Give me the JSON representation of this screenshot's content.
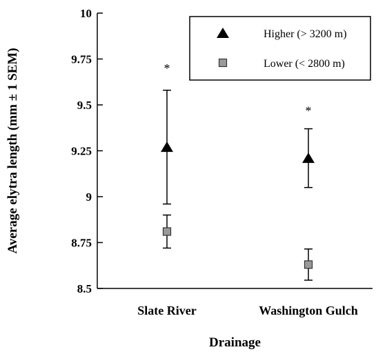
{
  "chart_data": {
    "type": "scatter",
    "title": "",
    "xlabel": "Drainage",
    "ylabel": "Average elytra length (mm ± 1 SEM)",
    "categories": [
      "Slate River",
      "Washington Gulch"
    ],
    "ylim": [
      8.5,
      10
    ],
    "yticks": [
      "8.5",
      "8.75",
      "9",
      "9.25",
      "9.5",
      "9.75",
      "10"
    ],
    "grid": false,
    "legend_position": "top-right",
    "series": [
      {
        "name": "Higher (> 3200 m)",
        "marker": "triangle",
        "color": "#000000",
        "values": [
          9.27,
          9.21
        ],
        "sem": [
          0.31,
          0.16
        ]
      },
      {
        "name": "Lower (< 2800 m)",
        "marker": "square",
        "color": "#9a9a9a",
        "values": [
          8.81,
          8.63
        ],
        "sem": [
          0.09,
          0.085
        ]
      }
    ],
    "annotations": [
      {
        "text": "*",
        "category": "Slate River",
        "y": 9.71
      },
      {
        "text": "*",
        "category": "Washington Gulch",
        "y": 9.48
      }
    ]
  }
}
